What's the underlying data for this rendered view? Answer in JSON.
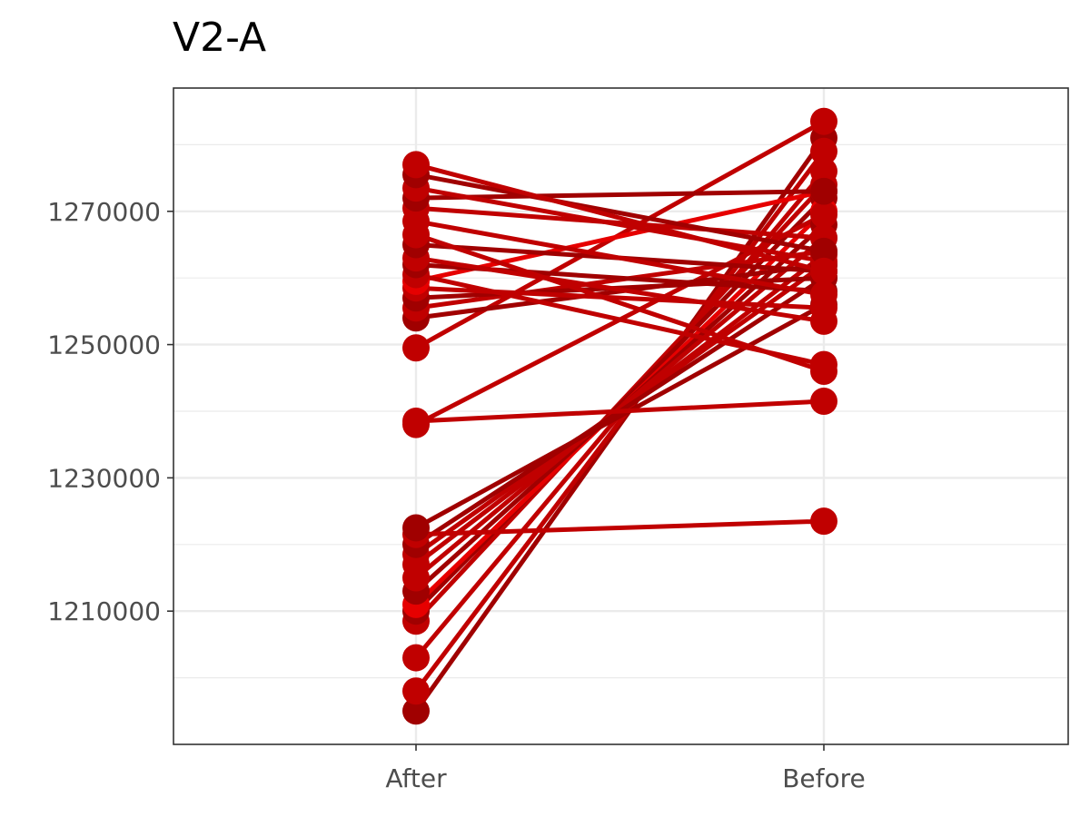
{
  "chart_data": {
    "type": "line",
    "title": "V2-A",
    "xlabel": "",
    "ylabel": "",
    "categories": [
      "After",
      "Before"
    ],
    "yticks": [
      "1210000",
      "1230000",
      "1250000",
      "1270000"
    ],
    "ylim": [
      1190000,
      1288500
    ],
    "grid": true,
    "legend": "none",
    "colors": {
      "line_dark": "#a00000",
      "line_mid": "#c00000",
      "line_bright": "#e60000",
      "grid": "#ebebeb",
      "border": "#333333"
    },
    "series": [
      {
        "values": [
          1195000,
          1281000
        ]
      },
      {
        "values": [
          1198000,
          1279000
        ]
      },
      {
        "values": [
          1203000,
          1276000
        ]
      },
      {
        "values": [
          1208500,
          1274000
        ]
      },
      {
        "values": [
          1210000,
          1272000
        ]
      },
      {
        "values": [
          1211000,
          1270000
        ]
      },
      {
        "values": [
          1213000,
          1268000
        ]
      },
      {
        "values": [
          1215000,
          1266000
        ]
      },
      {
        "values": [
          1217000,
          1263500
        ]
      },
      {
        "values": [
          1218500,
          1262000
        ]
      },
      {
        "values": [
          1220000,
          1260000
        ]
      },
      {
        "values": [
          1221500,
          1223500
        ]
      },
      {
        "values": [
          1222500,
          1256000
        ]
      },
      {
        "values": [
          1238500,
          1241500
        ]
      },
      {
        "values": [
          1238000,
          1269500
        ]
      },
      {
        "values": [
          1249500,
          1283500
        ]
      },
      {
        "values": [
          1254000,
          1262000
        ]
      },
      {
        "values": [
          1255500,
          1264000
        ]
      },
      {
        "values": [
          1257000,
          1260000
        ]
      },
      {
        "values": [
          1258500,
          1255500
        ]
      },
      {
        "values": [
          1259500,
          1273000
        ]
      },
      {
        "values": [
          1260500,
          1247000
        ]
      },
      {
        "values": [
          1262000,
          1258000
        ]
      },
      {
        "values": [
          1263000,
          1253500
        ]
      },
      {
        "values": [
          1265000,
          1261000
        ]
      },
      {
        "values": [
          1266500,
          1246000
        ]
      },
      {
        "values": [
          1268500,
          1257500
        ]
      },
      {
        "values": [
          1270500,
          1266000
        ]
      },
      {
        "values": [
          1272000,
          1273000
        ]
      },
      {
        "values": [
          1273500,
          1262500
        ]
      },
      {
        "values": [
          1275500,
          1264000
        ]
      },
      {
        "values": [
          1277000,
          1261000
        ]
      }
    ]
  }
}
